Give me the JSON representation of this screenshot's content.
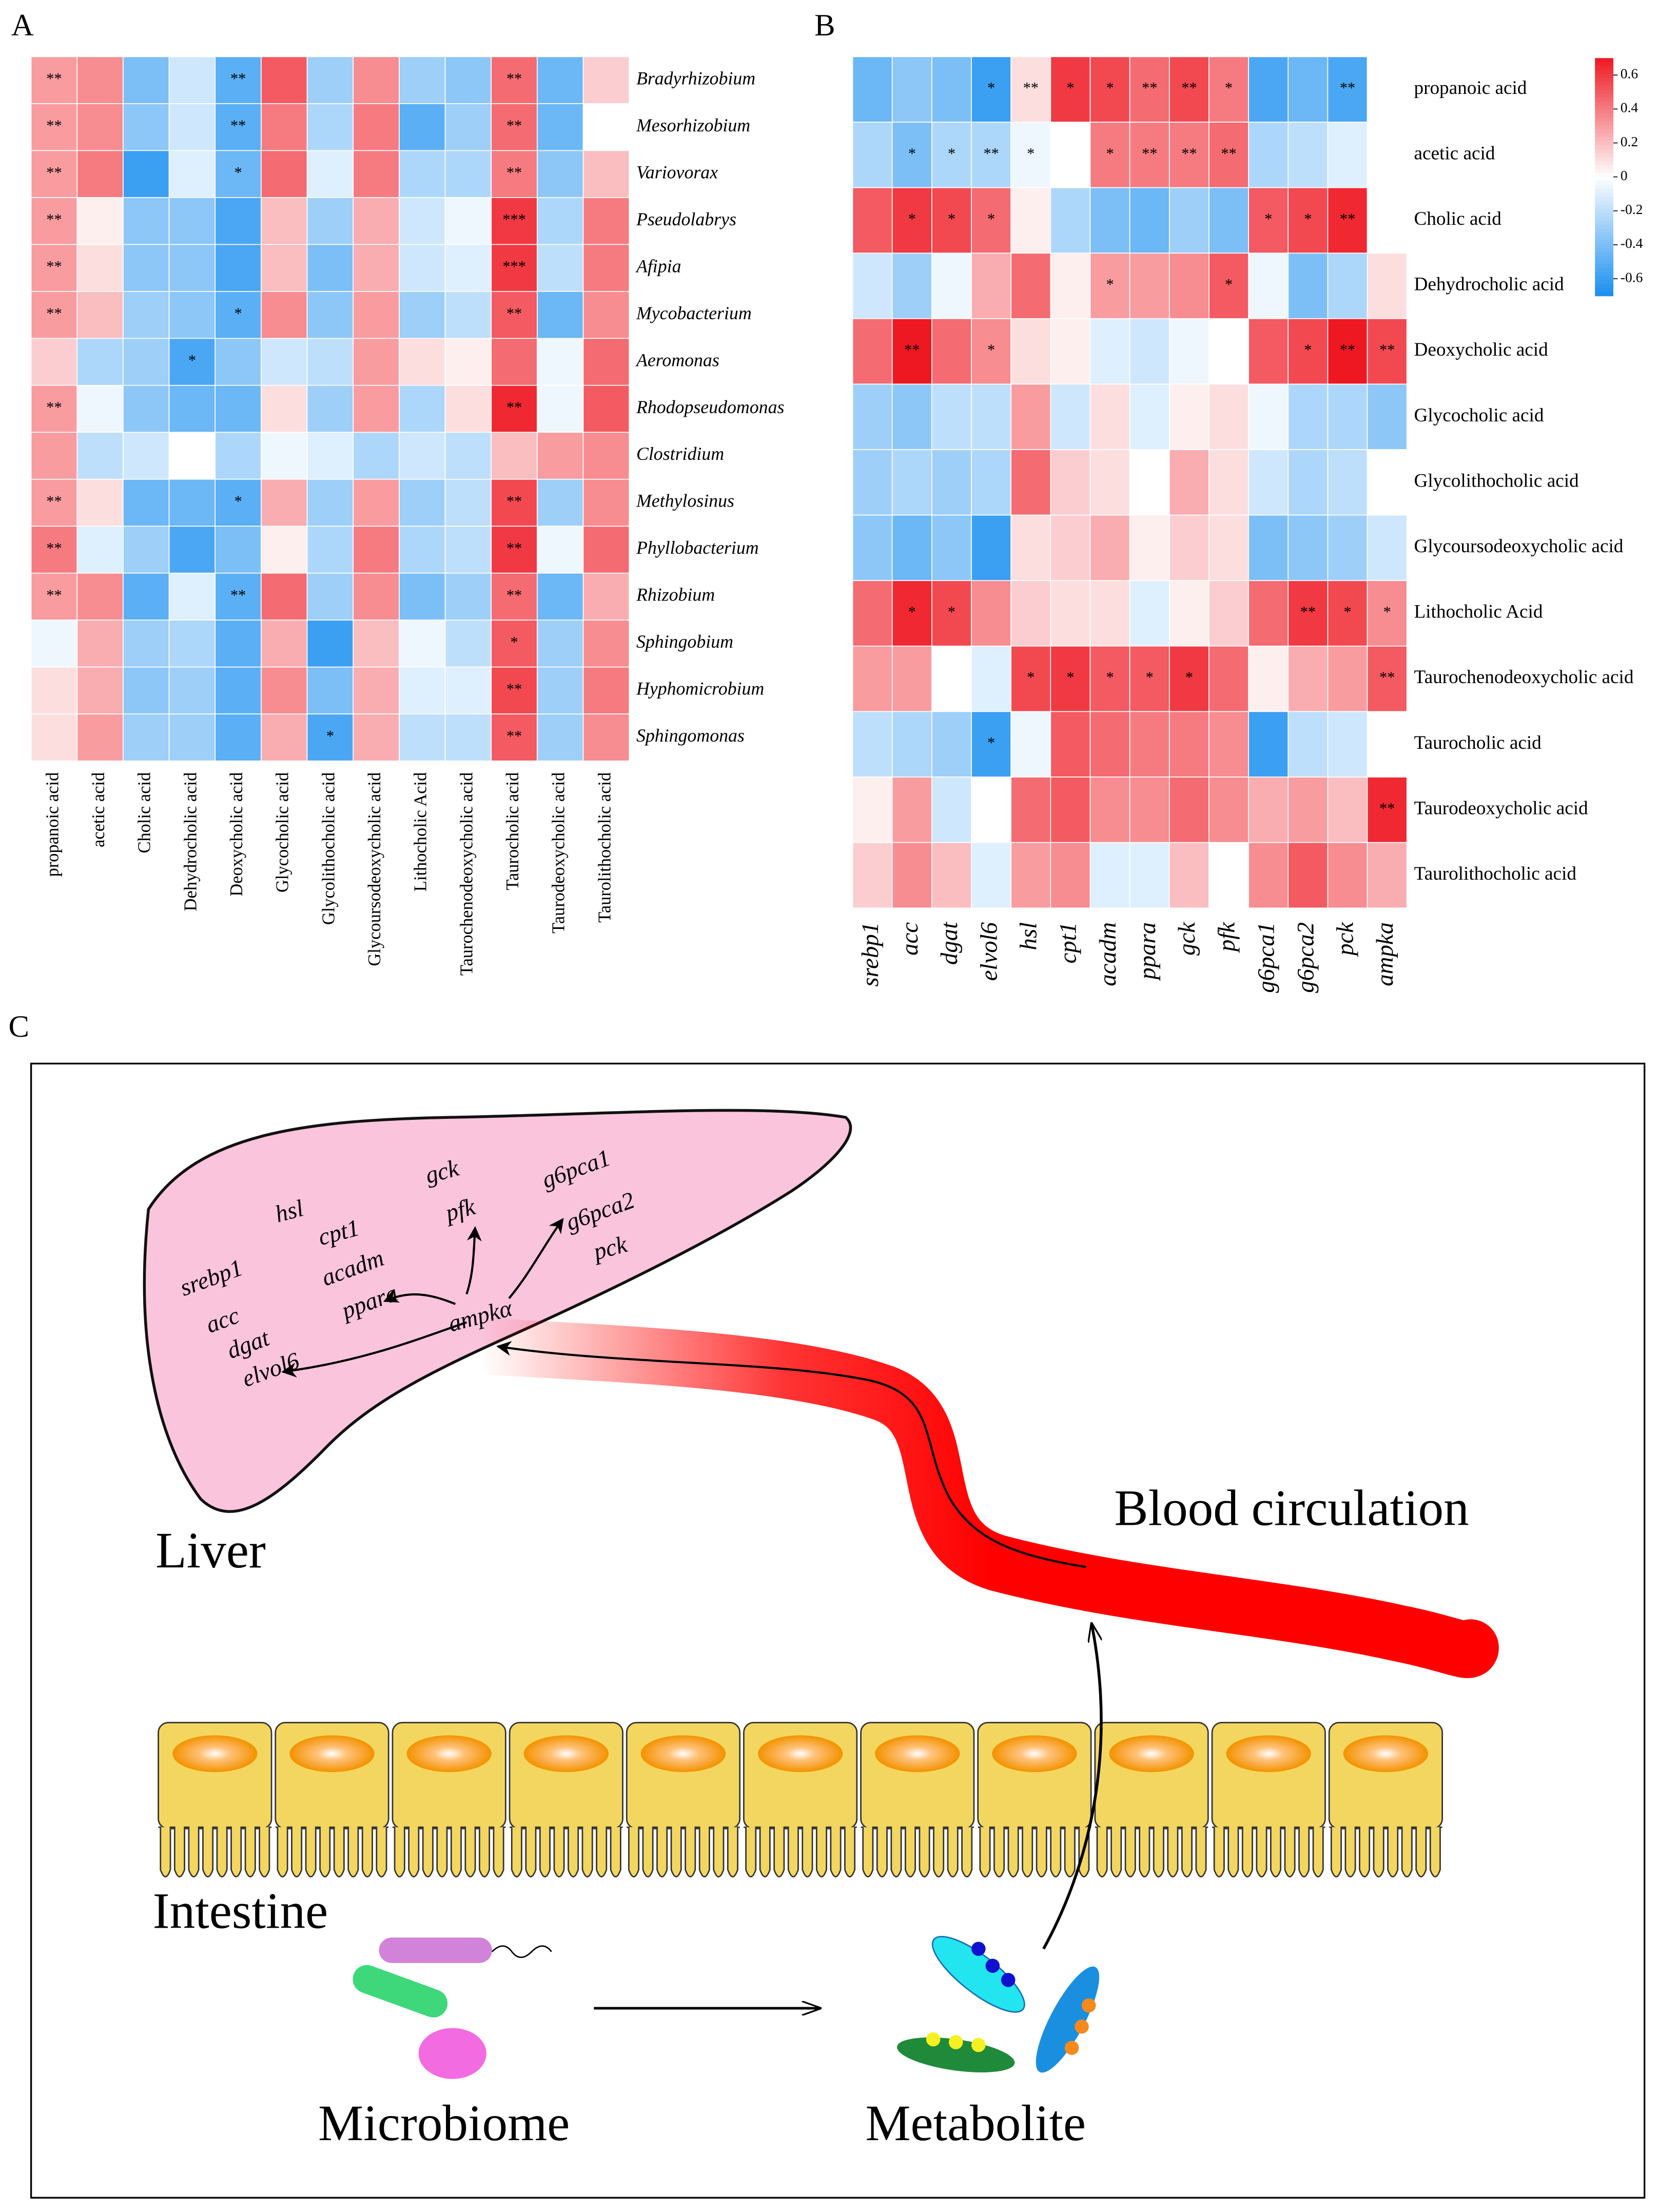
{
  "chart_data": [
    {
      "type": "heatmap",
      "label": "A",
      "x_categories": [
        "propanoic acid",
        "acetic acid",
        "Cholic acid",
        "Dehydrocholic acid",
        "Deoxycholic acid",
        "Glycocholic acid",
        "Glycolithocholic acid",
        "Glycoursodeoxycholic acid",
        "Lithocholic Acid",
        "Taurochenodeoxycholic acid",
        "Taurocholic acid",
        "Taurodeoxycholic acid",
        "Taurolithocholic acid"
      ],
      "y_categories": [
        "Bradyrhizobium",
        "Mesorhizobium",
        "Variovorax",
        "Pseudolabrys",
        "Afipia",
        "Mycobacterium",
        "Aeromonas",
        "Rhodopseudomonas",
        "Clostridium",
        "Methylosinus",
        "Phyllobacterium",
        "Rhizobium",
        "Sphingobium",
        "Hyphomicrobium",
        "Sphingomonas"
      ],
      "values": [
        [
          0.3,
          0.35,
          -0.4,
          -0.15,
          -0.5,
          0.5,
          -0.3,
          0.35,
          -0.3,
          -0.35,
          0.45,
          -0.45,
          0.15
        ],
        [
          0.3,
          0.35,
          -0.35,
          -0.15,
          -0.5,
          0.4,
          -0.25,
          0.4,
          -0.5,
          -0.3,
          0.45,
          -0.45,
          0.0
        ],
        [
          0.3,
          0.4,
          -0.6,
          -0.1,
          -0.45,
          0.45,
          -0.1,
          0.4,
          -0.25,
          -0.25,
          0.4,
          -0.35,
          0.2
        ],
        [
          0.3,
          0.05,
          -0.35,
          -0.35,
          -0.55,
          0.2,
          -0.3,
          0.25,
          -0.15,
          -0.05,
          0.6,
          -0.25,
          0.4
        ],
        [
          0.3,
          0.1,
          -0.35,
          -0.35,
          -0.55,
          0.2,
          -0.4,
          0.25,
          -0.15,
          -0.1,
          0.6,
          -0.2,
          0.4
        ],
        [
          0.3,
          0.2,
          -0.3,
          -0.35,
          -0.5,
          0.35,
          -0.35,
          0.3,
          -0.3,
          -0.2,
          0.5,
          -0.45,
          0.35
        ],
        [
          0.15,
          -0.25,
          -0.3,
          -0.55,
          -0.35,
          -0.15,
          -0.2,
          0.3,
          0.1,
          0.05,
          0.45,
          -0.05,
          0.45
        ],
        [
          0.3,
          -0.05,
          -0.35,
          -0.45,
          -0.45,
          0.1,
          -0.3,
          0.3,
          -0.25,
          0.1,
          0.65,
          -0.05,
          0.5
        ],
        [
          0.3,
          -0.2,
          -0.15,
          0.0,
          -0.25,
          -0.05,
          -0.1,
          -0.25,
          -0.15,
          -0.2,
          0.2,
          0.3,
          0.35
        ],
        [
          0.3,
          0.1,
          -0.45,
          -0.45,
          -0.5,
          0.25,
          -0.3,
          0.3,
          -0.3,
          -0.2,
          0.55,
          -0.3,
          0.35
        ],
        [
          0.4,
          -0.1,
          -0.3,
          -0.55,
          -0.4,
          0.05,
          -0.25,
          0.4,
          -0.25,
          -0.2,
          0.6,
          -0.05,
          0.45
        ],
        [
          0.3,
          0.35,
          -0.5,
          -0.1,
          -0.5,
          0.45,
          -0.3,
          0.35,
          -0.4,
          -0.3,
          0.45,
          -0.45,
          0.25
        ],
        [
          -0.05,
          0.25,
          -0.3,
          -0.25,
          -0.5,
          0.25,
          -0.6,
          0.2,
          -0.05,
          -0.2,
          0.5,
          -0.3,
          0.35
        ],
        [
          0.1,
          0.25,
          -0.35,
          -0.3,
          -0.5,
          0.35,
          -0.4,
          0.25,
          -0.1,
          -0.1,
          0.55,
          -0.3,
          0.4
        ],
        [
          0.1,
          0.3,
          -0.3,
          -0.3,
          -0.5,
          0.25,
          -0.55,
          0.25,
          -0.2,
          -0.2,
          0.5,
          -0.3,
          0.35
        ]
      ],
      "annotations": [
        [
          "**",
          null,
          null,
          null,
          "**",
          null,
          null,
          null,
          null,
          null,
          "**",
          null,
          null
        ],
        [
          "**",
          null,
          null,
          null,
          "**",
          null,
          null,
          null,
          null,
          null,
          "**",
          null,
          null
        ],
        [
          "**",
          null,
          null,
          null,
          "*",
          null,
          null,
          null,
          null,
          null,
          "**",
          null,
          null
        ],
        [
          "**",
          null,
          null,
          null,
          null,
          null,
          null,
          null,
          null,
          null,
          "***",
          null,
          null
        ],
        [
          "**",
          null,
          null,
          null,
          null,
          null,
          null,
          null,
          null,
          null,
          "***",
          null,
          null
        ],
        [
          "**",
          null,
          null,
          null,
          "*",
          null,
          null,
          null,
          null,
          null,
          "**",
          null,
          null
        ],
        [
          null,
          null,
          null,
          "*",
          null,
          null,
          null,
          null,
          null,
          null,
          null,
          null,
          null
        ],
        [
          "**",
          null,
          null,
          null,
          null,
          null,
          null,
          null,
          null,
          null,
          "**",
          null,
          null
        ],
        [
          null,
          null,
          null,
          null,
          null,
          null,
          null,
          null,
          null,
          null,
          null,
          null,
          null
        ],
        [
          "**",
          null,
          null,
          null,
          "*",
          null,
          null,
          null,
          null,
          null,
          "**",
          null,
          null
        ],
        [
          "**",
          null,
          null,
          null,
          null,
          null,
          null,
          null,
          null,
          null,
          "**",
          null,
          null
        ],
        [
          "**",
          null,
          null,
          null,
          "**",
          null,
          null,
          null,
          null,
          null,
          "**",
          null,
          null
        ],
        [
          null,
          null,
          null,
          null,
          null,
          null,
          null,
          null,
          null,
          null,
          "*",
          null,
          null
        ],
        [
          null,
          null,
          null,
          null,
          null,
          null,
          null,
          null,
          null,
          null,
          "**",
          null,
          null
        ],
        [
          null,
          null,
          null,
          null,
          null,
          null,
          "*",
          null,
          null,
          null,
          "**",
          null,
          null
        ]
      ],
      "zlim": [
        -0.7,
        0.7
      ],
      "colors": [
        "#1a8ff0",
        "#ffffff",
        "#ee1822"
      ]
    },
    {
      "type": "heatmap",
      "label": "B",
      "x_categories": [
        "srebp1",
        "acc",
        "dgat",
        "elvol6",
        "hsl",
        "cpt1",
        "acadm",
        "ppara",
        "gck",
        "pfk",
        "g6pca1",
        "g6pca2",
        "pck",
        "ampka"
      ],
      "y_categories": [
        "propanoic acid",
        "acetic acid",
        "Cholic acid",
        "Dehydrocholic acid",
        "Deoxycholic acid",
        "Glycocholic acid",
        "Glycolithocholic acid",
        "Glycoursodeoxycholic acid",
        "Lithocholic Acid",
        "Taurochenodeoxycholic acid",
        "Taurocholic acid",
        "Taurodeoxycholic acid",
        "Taurolithocholic acid"
      ],
      "values": [
        [
          -0.45,
          -0.35,
          -0.4,
          -0.6,
          0.1,
          0.6,
          0.55,
          0.45,
          0.55,
          0.4,
          -0.55,
          -0.45,
          -0.55,
          0.0
        ],
        [
          -0.25,
          -0.4,
          -0.25,
          -0.25,
          -0.05,
          0.0,
          0.4,
          0.4,
          0.4,
          0.45,
          -0.25,
          -0.2,
          -0.1,
          0.0
        ],
        [
          0.5,
          0.6,
          0.55,
          0.45,
          0.05,
          -0.25,
          -0.4,
          -0.45,
          -0.3,
          -0.4,
          0.5,
          0.55,
          0.65,
          0.0
        ],
        [
          -0.15,
          -0.3,
          -0.05,
          0.25,
          0.45,
          0.05,
          0.3,
          0.3,
          0.35,
          0.5,
          -0.05,
          -0.4,
          -0.25,
          0.1
        ],
        [
          0.45,
          0.7,
          0.45,
          0.35,
          0.1,
          0.05,
          -0.1,
          -0.15,
          -0.05,
          0.0,
          0.5,
          0.55,
          0.7,
          0.55
        ],
        [
          -0.3,
          -0.35,
          -0.2,
          -0.2,
          0.3,
          -0.15,
          0.1,
          -0.1,
          0.05,
          0.1,
          -0.05,
          -0.25,
          -0.25,
          -0.35
        ],
        [
          -0.3,
          -0.25,
          -0.3,
          -0.25,
          0.45,
          0.15,
          0.1,
          0.0,
          0.25,
          0.1,
          -0.15,
          -0.25,
          -0.2,
          0.0
        ],
        [
          -0.35,
          -0.45,
          -0.35,
          -0.6,
          0.1,
          0.15,
          0.25,
          0.05,
          0.15,
          0.1,
          -0.4,
          -0.35,
          -0.3,
          -0.15
        ],
        [
          0.45,
          0.65,
          0.55,
          0.35,
          0.15,
          0.1,
          0.1,
          -0.1,
          0.05,
          0.15,
          0.45,
          0.6,
          0.55,
          0.35
        ],
        [
          0.3,
          0.3,
          0.0,
          -0.1,
          0.55,
          0.6,
          0.5,
          0.5,
          0.6,
          0.45,
          0.05,
          0.25,
          0.3,
          0.5
        ],
        [
          -0.2,
          -0.25,
          -0.3,
          -0.6,
          -0.05,
          0.5,
          0.45,
          0.4,
          0.4,
          0.35,
          -0.6,
          -0.2,
          -0.15,
          0.0
        ],
        [
          0.05,
          0.3,
          -0.15,
          0.0,
          0.45,
          0.5,
          0.35,
          0.35,
          0.45,
          0.35,
          0.25,
          0.3,
          0.2,
          0.65
        ],
        [
          0.15,
          0.35,
          0.2,
          -0.1,
          0.3,
          0.35,
          -0.1,
          -0.1,
          0.2,
          0.0,
          0.35,
          0.5,
          0.35,
          0.25
        ]
      ],
      "annotations": [
        [
          null,
          null,
          null,
          "*",
          "**",
          "*",
          "*",
          "**",
          "**",
          "*",
          null,
          null,
          "**",
          null
        ],
        [
          null,
          "*",
          "*",
          "**",
          "*",
          null,
          "*",
          "**",
          "**",
          "**",
          null,
          null,
          null,
          null
        ],
        [
          null,
          "*",
          "*",
          "*",
          null,
          null,
          null,
          null,
          null,
          null,
          "*",
          "*",
          "**",
          null
        ],
        [
          null,
          null,
          null,
          null,
          null,
          null,
          "*",
          null,
          null,
          "*",
          null,
          null,
          null,
          null
        ],
        [
          null,
          "**",
          null,
          "*",
          null,
          null,
          null,
          null,
          null,
          null,
          null,
          "*",
          "**",
          "**"
        ],
        [
          null,
          null,
          null,
          null,
          null,
          null,
          null,
          null,
          null,
          null,
          null,
          null,
          null,
          null
        ],
        [
          null,
          null,
          null,
          null,
          null,
          null,
          null,
          null,
          null,
          null,
          null,
          null,
          null,
          null
        ],
        [
          null,
          null,
          null,
          null,
          null,
          null,
          null,
          null,
          null,
          null,
          null,
          null,
          null,
          null
        ],
        [
          null,
          "*",
          "*",
          null,
          null,
          null,
          null,
          null,
          null,
          null,
          null,
          "**",
          "*",
          "*"
        ],
        [
          null,
          null,
          null,
          null,
          "*",
          "*",
          "*",
          "*",
          "*",
          null,
          null,
          null,
          null,
          "**"
        ],
        [
          null,
          null,
          null,
          "*",
          null,
          null,
          null,
          null,
          null,
          null,
          null,
          null,
          null,
          null
        ],
        [
          null,
          null,
          null,
          null,
          null,
          null,
          null,
          null,
          null,
          null,
          null,
          null,
          null,
          "**"
        ],
        [
          null,
          null,
          null,
          null,
          null,
          null,
          null,
          null,
          null,
          null,
          null,
          null,
          null,
          null
        ]
      ],
      "zlim": [
        -0.7,
        0.7
      ],
      "zticks": [
        0.6,
        0.4,
        0.2,
        0,
        -0.2,
        -0.4,
        -0.6
      ],
      "colorbar": true,
      "colors": [
        "#1a8ff0",
        "#ffffff",
        "#ee1822"
      ]
    }
  ],
  "diagram": {
    "label": "C",
    "genes": [
      "srebp1",
      "acc",
      "dgat",
      "elvol6",
      "hsl",
      "cpt1",
      "acadm",
      "ppara",
      "gck",
      "pfk",
      "ampkα",
      "g6pca1",
      "g6pca2",
      "pck"
    ],
    "liver": "Liver",
    "blood": "Blood circulation",
    "intestine": "Intestine",
    "microbiome": "Microbiome",
    "metabolite": "Metabolite"
  }
}
